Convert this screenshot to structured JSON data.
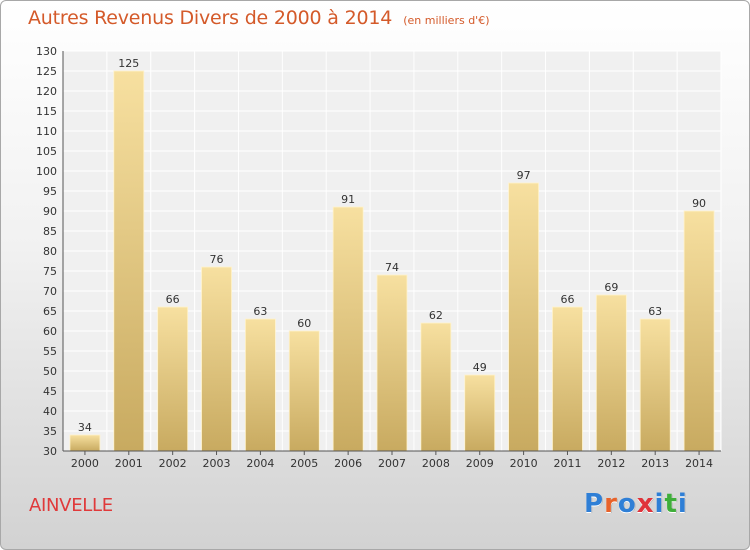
{
  "chart_data": {
    "type": "bar",
    "title": "Autres Revenus Divers de 2000 à 2014",
    "subtitle": "(en milliers d'€)",
    "categories": [
      "2000",
      "2001",
      "2002",
      "2003",
      "2004",
      "2005",
      "2006",
      "2007",
      "2008",
      "2009",
      "2010",
      "2011",
      "2012",
      "2013",
      "2014"
    ],
    "values": [
      34,
      125,
      66,
      76,
      63,
      60,
      91,
      74,
      62,
      49,
      97,
      66,
      69,
      63,
      90
    ],
    "ylim": [
      30,
      130
    ],
    "y_ticks": [
      30,
      35,
      40,
      45,
      50,
      55,
      60,
      65,
      70,
      75,
      80,
      85,
      90,
      95,
      100,
      105,
      110,
      115,
      120,
      125,
      130
    ],
    "grid": true,
    "data_labels": true,
    "bar_color_top": "#f7e0a0",
    "bar_color_bottom": "#c8aa60"
  },
  "footer": {
    "commune": "AINVELLE",
    "brand_letters": [
      "P",
      "r",
      "o",
      "x",
      "i",
      "t",
      "i"
    ],
    "brand_colors": [
      "#2f7fd6",
      "#e8622a",
      "#2f7fd6",
      "#e0333a",
      "#2f7fd6",
      "#3fae3a",
      "#2f7fd6"
    ]
  }
}
